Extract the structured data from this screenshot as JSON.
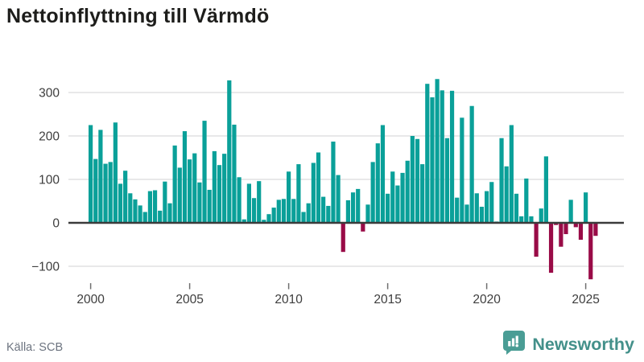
{
  "title": "Nettoinflyttning till Värmdö",
  "footer": {
    "source_label": "Källa: SCB",
    "brand_name": "Newsworthy",
    "brand_icon": "bar-chart-speech-bubble-icon"
  },
  "colors": {
    "positive_bar": "#0aa099",
    "negative_bar": "#990b47",
    "gridline": "#e5e5e6",
    "zero_line": "#3b3b3b",
    "axis_text": "#3d3d3d",
    "tick_mark": "#6f6f6f",
    "title_text": "#1d1d1b",
    "source_text": "#6d7480",
    "brand_teal": "#43908a",
    "brand_icon_bg": "#4a9d95"
  },
  "chart_data": {
    "type": "bar",
    "title": "Nettoinflyttning till Värmdö",
    "xlabel": "",
    "ylabel": "",
    "frequency": "quarterly",
    "x_start_year": 2000,
    "x_ticks": [
      2000,
      2005,
      2010,
      2015,
      2020,
      2025
    ],
    "y_ticks": [
      300,
      200,
      100,
      0,
      -100
    ],
    "ylim": [
      -145,
      350
    ],
    "grid": true,
    "values": [
      225,
      147,
      214,
      136,
      140,
      231,
      90,
      120,
      68,
      54,
      40,
      25,
      73,
      75,
      28,
      95,
      45,
      178,
      127,
      211,
      146,
      160,
      93,
      235,
      76,
      165,
      133,
      159,
      328,
      226,
      105,
      8,
      90,
      57,
      96,
      7,
      20,
      35,
      53,
      55,
      118,
      55,
      135,
      25,
      45,
      138,
      162,
      60,
      39,
      187,
      110,
      -67,
      52,
      70,
      78,
      -20,
      42,
      140,
      183,
      225,
      67,
      118,
      86,
      115,
      143,
      200,
      193,
      135,
      320,
      289,
      331,
      305,
      195,
      304,
      58,
      242,
      42,
      269,
      68,
      37,
      73,
      94,
      3,
      195,
      130,
      225,
      67,
      15,
      102,
      15,
      -78,
      33,
      153,
      -115,
      -5,
      -55,
      -26,
      53,
      -10,
      -39,
      70,
      -130,
      -30
    ]
  }
}
